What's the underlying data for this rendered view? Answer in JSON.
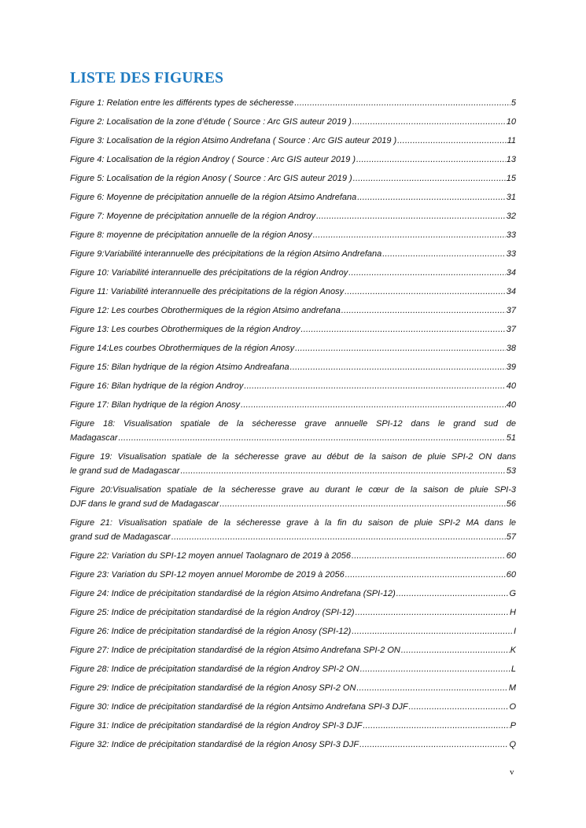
{
  "heading": "LISTE DES FIGURES",
  "entries": [
    {
      "lines": [
        "Figure 1: Relation entre les différents types de sécheresse"
      ],
      "page": "5"
    },
    {
      "lines": [
        "Figure 2: Localisation de la zone d’étude  ( Source : Arc GIS auteur 2019 )"
      ],
      "page": "10"
    },
    {
      "lines": [
        "Figure 3: Localisation de la région  Atsimo Andrefana  ( Source : Arc GIS auteur 2019 )"
      ],
      "page": "11"
    },
    {
      "lines": [
        "Figure 4: Localisation de la région Androy   ( Source : Arc GIS auteur 2019 )"
      ],
      "page": "13"
    },
    {
      "lines": [
        "Figure 5: Localisation de la région Anosy  ( Source : Arc GIS auteur 2019 )"
      ],
      "page": "15"
    },
    {
      "lines": [
        "Figure 6: Moyenne de précipitation annuelle de la région Atsimo Andrefana"
      ],
      "page": "31"
    },
    {
      "lines": [
        "Figure 7: Moyenne de précipitation annuelle de la région Androy"
      ],
      "page": "32"
    },
    {
      "lines": [
        "Figure 8: moyenne de précipitation annuelle de la région Anosy"
      ],
      "page": "33"
    },
    {
      "lines": [
        "Figure 9:Variabilité interannuelle des précipitations de la région Atsimo Andrefana"
      ],
      "page": "33"
    },
    {
      "lines": [
        "Figure 10: Variabilité interannuelle des précipitations  de la région Androy"
      ],
      "page": "34"
    },
    {
      "lines": [
        "Figure 11: Variabilité interannuelle des précipitations  de la région Anosy"
      ],
      "page": "34"
    },
    {
      "lines": [
        "Figure 12: Les courbes Obrothermiques de la région Atsimo andrefana"
      ],
      "page": "37"
    },
    {
      "lines": [
        "Figure 13: Les courbes Obrothermiques de la région Androy"
      ],
      "page": "37"
    },
    {
      "lines": [
        "Figure 14:Les courbes Obrothermiques  de la région Anosy"
      ],
      "page": "38"
    },
    {
      "lines": [
        "Figure 15: Bilan hydrique de la région Atsimo Andreafana"
      ],
      "page": "39"
    },
    {
      "lines": [
        "Figure 16: Bilan hydrique de la région Androy"
      ],
      "page": "40"
    },
    {
      "lines": [
        "Figure 17: Bilan hydrique de la région Anosy"
      ],
      "page": "40"
    },
    {
      "lines": [
        "Figure 18: Visualisation spatiale de la sécheresse grave annuelle SPI-12 dans le grand sud de",
        "Madagascar"
      ],
      "page": "51"
    },
    {
      "lines": [
        "Figure 19: Visualisation spatiale de la sécheresse grave au début de la saison de pluie SPI-2 ON dans",
        "le grand sud de Madagascar"
      ],
      "page": "53"
    },
    {
      "lines": [
        "Figure 20:Visualisation spatiale de la sécheresse grave au durant le cœur  de la saison de pluie SPI-3",
        "DJF dans le grand sud de Madagascar"
      ],
      "page": "56"
    },
    {
      "lines": [
        "Figure 21: Visualisation spatiale de la sécheresse grave à la fin du saison de pluie SPI-2 MA dans le",
        "grand sud de Madagascar"
      ],
      "page": "57"
    },
    {
      "lines": [
        "Figure 22: Variation du SPI-12 moyen annuel Taolagnaro de 2019 à 2056"
      ],
      "page": "60"
    },
    {
      "lines": [
        "Figure 23: Variation du SPI-12 moyen annuel Morombe de 2019  à 2056"
      ],
      "page": "60"
    },
    {
      "lines": [
        "Figure 24: Indice de précipitation standardisé de la région Atsimo Andrefana (SPI-12)"
      ],
      "page": "G"
    },
    {
      "lines": [
        "Figure 25: Indice de précipitation standardisé de la région Androy (SPI-12)"
      ],
      "page": "H"
    },
    {
      "lines": [
        "Figure 26: Indice de précipitation standardisé de la région Anosy (SPI-12)"
      ],
      "page": "I"
    },
    {
      "lines": [
        "Figure 27: Indice de précipitation standardisé de la région Atsimo Andrefana SPI-2 ON"
      ],
      "page": "K"
    },
    {
      "lines": [
        "Figure 28: Indice de précipitation standardisé de la région Androy SPI-2 ON"
      ],
      "page": "L"
    },
    {
      "lines": [
        "Figure 29: Indice de précipitation standardisé de la région Anosy SPI-2 ON"
      ],
      "page": "M"
    },
    {
      "lines": [
        "Figure 30: Indice de précipitation standardisé de la région Antsimo Andrefana SPI-3 DJF"
      ],
      "page": "O"
    },
    {
      "lines": [
        "Figure 31: Indice de précipitation standardisé de la région Androy SPI-3 DJF"
      ],
      "page": "P"
    },
    {
      "lines": [
        "Figure 32: Indice de précipitation standardisé de la région Anosy SPI-3 DJF"
      ],
      "page": "Q"
    }
  ],
  "folio": "v",
  "colors": {
    "heading": "#1f7bc1",
    "text": "#111111"
  }
}
